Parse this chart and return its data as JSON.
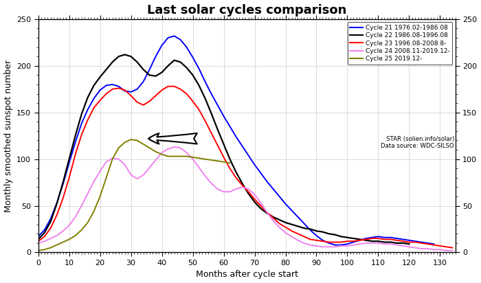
{
  "title": "Last solar cycles comparison",
  "xlabel": "Months after cycle start",
  "ylabel": "Monthly smoothed sunspot number",
  "ylim": [
    0,
    250
  ],
  "xlim": [
    0,
    135
  ],
  "legend_entries": [
    "Cycle 21 1976.02-1986.08",
    "Cycle 22 1986.08-1996.08",
    "Cycle 23 1996.08-2008.8-",
    "Cycle 24 2008.11-2019.12-",
    "Cycle 25 2019.12-"
  ],
  "legend_extra": [
    "STAR (solien.info/solar)",
    "Data source: WDC-SILSO"
  ],
  "line_colors": [
    "blue",
    "black",
    "red",
    "violet",
    "olive"
  ],
  "background_color": "#ffffff",
  "grid_color": "#cccccc",
  "title_fontsize": 13,
  "cycles": {
    "cycle21": {
      "months": [
        0,
        2,
        4,
        6,
        8,
        10,
        12,
        14,
        16,
        18,
        20,
        22,
        24,
        26,
        28,
        30,
        32,
        34,
        36,
        38,
        40,
        42,
        44,
        46,
        48,
        50,
        52,
        54,
        56,
        58,
        60,
        62,
        64,
        66,
        68,
        70,
        72,
        74,
        76,
        78,
        80,
        82,
        84,
        86,
        88,
        90,
        92,
        94,
        96,
        98,
        100,
        102,
        104,
        106,
        108,
        110,
        112,
        114,
        116,
        118,
        120,
        122,
        124,
        126,
        128
      ],
      "values": [
        17,
        24,
        36,
        53,
        73,
        96,
        118,
        138,
        153,
        165,
        174,
        179,
        180,
        178,
        173,
        172,
        175,
        183,
        196,
        210,
        222,
        230,
        232,
        228,
        220,
        209,
        197,
        183,
        170,
        158,
        146,
        135,
        124,
        114,
        104,
        94,
        85,
        76,
        68,
        60,
        52,
        45,
        38,
        31,
        24,
        18,
        13,
        10,
        8,
        8,
        9,
        11,
        13,
        15,
        16,
        17,
        16,
        16,
        15,
        14,
        13,
        12,
        11,
        10,
        9
      ]
    },
    "cycle22": {
      "months": [
        0,
        2,
        4,
        6,
        8,
        10,
        12,
        14,
        16,
        18,
        20,
        22,
        24,
        26,
        28,
        30,
        32,
        34,
        36,
        38,
        40,
        42,
        44,
        46,
        48,
        50,
        52,
        54,
        56,
        58,
        60,
        62,
        64,
        66,
        68,
        70,
        72,
        74,
        76,
        78,
        80,
        82,
        84,
        86,
        88,
        90,
        92,
        94,
        96,
        98,
        100,
        102,
        104,
        106,
        108,
        110,
        112,
        114,
        116,
        118,
        120
      ],
      "values": [
        14,
        21,
        33,
        52,
        75,
        100,
        125,
        148,
        166,
        179,
        188,
        196,
        204,
        210,
        212,
        210,
        204,
        196,
        190,
        189,
        193,
        200,
        206,
        204,
        198,
        190,
        179,
        165,
        149,
        132,
        116,
        100,
        86,
        74,
        63,
        54,
        47,
        42,
        38,
        35,
        32,
        30,
        28,
        26,
        25,
        23,
        22,
        20,
        19,
        17,
        16,
        15,
        14,
        13,
        12,
        12,
        11,
        11,
        10,
        10,
        9
      ]
    },
    "cycle23": {
      "months": [
        0,
        2,
        4,
        6,
        8,
        10,
        12,
        14,
        16,
        18,
        20,
        22,
        24,
        26,
        28,
        30,
        32,
        34,
        36,
        38,
        40,
        42,
        44,
        46,
        48,
        50,
        52,
        54,
        56,
        58,
        60,
        62,
        64,
        66,
        68,
        70,
        72,
        74,
        76,
        78,
        80,
        82,
        84,
        86,
        88,
        90,
        92,
        94,
        96,
        98,
        100,
        102,
        104,
        106,
        108,
        110,
        112,
        114,
        116,
        118,
        120,
        122,
        124,
        126,
        128,
        130,
        132,
        134
      ],
      "values": [
        12,
        17,
        26,
        40,
        58,
        80,
        105,
        126,
        142,
        155,
        163,
        170,
        175,
        176,
        174,
        168,
        161,
        158,
        162,
        168,
        174,
        178,
        178,
        175,
        170,
        162,
        153,
        141,
        128,
        115,
        102,
        90,
        80,
        72,
        65,
        57,
        50,
        43,
        37,
        31,
        27,
        23,
        20,
        17,
        14,
        13,
        12,
        11,
        11,
        11,
        12,
        12,
        13,
        14,
        15,
        15,
        14,
        14,
        13,
        12,
        11,
        11,
        10,
        9,
        8,
        7,
        6,
        5
      ]
    },
    "cycle24": {
      "months": [
        0,
        2,
        4,
        6,
        8,
        10,
        12,
        14,
        16,
        18,
        20,
        22,
        24,
        26,
        28,
        30,
        32,
        34,
        36,
        38,
        40,
        42,
        44,
        46,
        48,
        50,
        52,
        54,
        56,
        58,
        60,
        62,
        64,
        66,
        68,
        70,
        72,
        74,
        76,
        78,
        80,
        82,
        84,
        86,
        88,
        90,
        92,
        94,
        96,
        98,
        100,
        102,
        104,
        106,
        108,
        110,
        112,
        114,
        116,
        118,
        120,
        122,
        124,
        126,
        128,
        130,
        132,
        134
      ],
      "values": [
        10,
        12,
        15,
        18,
        23,
        29,
        38,
        50,
        63,
        76,
        87,
        97,
        101,
        100,
        94,
        83,
        79,
        83,
        91,
        99,
        107,
        111,
        113,
        112,
        107,
        100,
        91,
        82,
        74,
        68,
        65,
        65,
        68,
        70,
        68,
        62,
        53,
        43,
        34,
        27,
        21,
        17,
        13,
        10,
        8,
        7,
        6,
        6,
        6,
        7,
        7,
        8,
        9,
        10,
        10,
        10,
        9,
        9,
        8,
        7,
        6,
        5,
        4,
        4,
        3,
        3,
        2,
        2
      ]
    },
    "cycle25": {
      "months": [
        0,
        2,
        4,
        6,
        8,
        10,
        12,
        14,
        16,
        18,
        20,
        22,
        24,
        26,
        28,
        30,
        32,
        34,
        36,
        38,
        40,
        42,
        44,
        46,
        48,
        50,
        52,
        54,
        56,
        58,
        60,
        62
      ],
      "values": [
        2,
        3,
        5,
        8,
        11,
        14,
        18,
        24,
        32,
        44,
        60,
        80,
        100,
        112,
        118,
        121,
        120,
        116,
        112,
        108,
        105,
        103,
        103,
        103,
        103,
        102,
        101,
        100,
        99,
        98,
        97,
        96
      ]
    }
  }
}
